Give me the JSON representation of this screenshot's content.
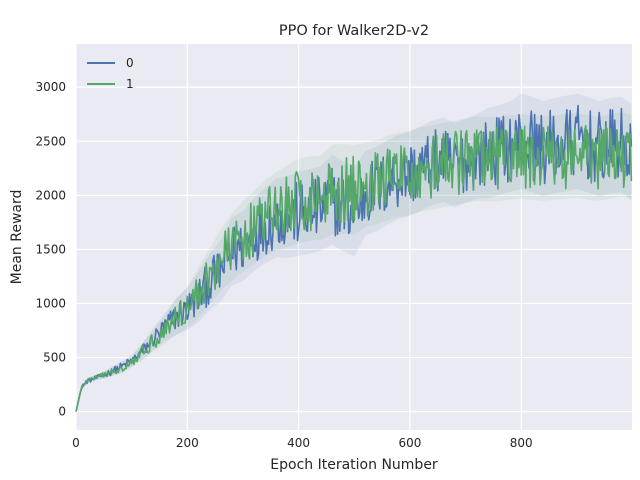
{
  "chart_data": {
    "type": "line",
    "title": "PPO for Walker2D-v2",
    "xlabel": "Epoch Iteration Number",
    "ylabel": "Mean Reward",
    "xlim": [
      0,
      999
    ],
    "ylim": [
      -170,
      3400
    ],
    "xticks": [
      0,
      200,
      400,
      600,
      800
    ],
    "yticks": [
      0,
      500,
      1000,
      1500,
      2000,
      2500,
      3000
    ],
    "grid": true,
    "legend_position": "top-left",
    "colors": {
      "background": "#eaeaf2",
      "grid": "#ffffff",
      "series_0": "#4c72b0",
      "series_1": "#55a868"
    },
    "series": [
      {
        "name": "0",
        "color": "#4c72b0",
        "x": [
          0,
          10,
          20,
          40,
          60,
          80,
          100,
          120,
          140,
          160,
          180,
          200,
          220,
          240,
          260,
          280,
          300,
          320,
          340,
          360,
          380,
          400,
          420,
          440,
          460,
          480,
          500,
          520,
          540,
          560,
          580,
          600,
          620,
          640,
          660,
          680,
          700,
          720,
          740,
          760,
          780,
          800,
          820,
          840,
          860,
          880,
          900,
          920,
          940,
          960,
          980,
          999
        ],
        "values": [
          0,
          220,
          280,
          320,
          360,
          410,
          470,
          560,
          680,
          780,
          880,
          950,
          1060,
          1200,
          1300,
          1480,
          1530,
          1640,
          1720,
          1790,
          1800,
          1830,
          1850,
          1880,
          1960,
          1900,
          1850,
          2020,
          2060,
          2120,
          2170,
          2200,
          2250,
          2300,
          2330,
          2280,
          2320,
          2360,
          2390,
          2420,
          2450,
          2500,
          2470,
          2430,
          2460,
          2480,
          2500,
          2470,
          2430,
          2460,
          2470,
          2400
        ],
        "band": [
          0,
          10,
          20,
          20,
          30,
          40,
          40,
          60,
          80,
          100,
          130,
          150,
          180,
          200,
          220,
          240,
          250,
          260,
          270,
          280,
          290,
          300,
          300,
          300,
          320,
          320,
          320,
          300,
          300,
          300,
          300,
          300,
          300,
          300,
          300,
          300,
          300,
          300,
          320,
          320,
          320,
          340,
          340,
          340,
          340,
          340,
          340,
          340,
          340,
          340,
          340,
          340
        ]
      },
      {
        "name": "1",
        "color": "#55a868",
        "x": [
          0,
          10,
          20,
          40,
          60,
          80,
          100,
          120,
          140,
          160,
          180,
          200,
          220,
          240,
          260,
          280,
          300,
          320,
          340,
          360,
          380,
          400,
          420,
          440,
          460,
          480,
          500,
          520,
          540,
          560,
          580,
          600,
          620,
          640,
          660,
          680,
          700,
          720,
          740,
          760,
          780,
          800,
          820,
          840,
          860,
          880,
          900,
          920,
          940,
          960,
          980,
          999
        ],
        "values": [
          0,
          230,
          290,
          320,
          360,
          400,
          460,
          560,
          660,
          760,
          880,
          960,
          1100,
          1250,
          1400,
          1520,
          1620,
          1700,
          1790,
          1850,
          1900,
          1950,
          1970,
          1980,
          2050,
          2060,
          2050,
          2100,
          2120,
          2160,
          2190,
          2210,
          2240,
          2260,
          2280,
          2300,
          2320,
          2340,
          2330,
          2340,
          2350,
          2360,
          2350,
          2340,
          2350,
          2360,
          2370,
          2350,
          2340,
          2360,
          2380,
          2350
        ],
        "band": [
          0,
          10,
          20,
          20,
          30,
          40,
          40,
          60,
          80,
          100,
          130,
          150,
          180,
          200,
          220,
          240,
          250,
          260,
          270,
          280,
          290,
          300,
          300,
          300,
          320,
          320,
          320,
          300,
          300,
          300,
          300,
          300,
          300,
          300,
          300,
          300,
          300,
          300,
          300,
          300,
          300,
          300,
          300,
          300,
          300,
          300,
          300,
          300,
          300,
          300,
          300,
          300
        ]
      }
    ]
  }
}
